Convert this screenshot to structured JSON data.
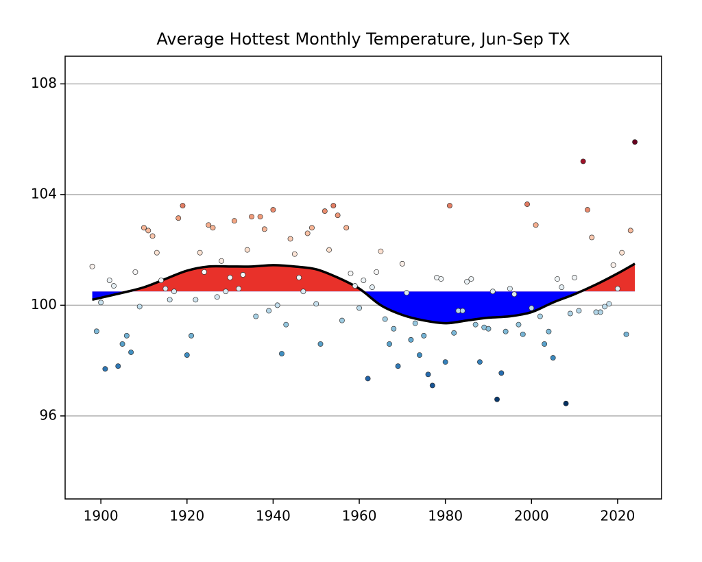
{
  "chart_data": {
    "type": "scatter",
    "title": "Average Hottest Monthly Temperature, Jun-Sep TX",
    "x": [
      1898,
      1899,
      1900,
      1901,
      1902,
      1903,
      1904,
      1905,
      1906,
      1907,
      1908,
      1909,
      1910,
      1911,
      1912,
      1913,
      1914,
      1915,
      1916,
      1917,
      1918,
      1919,
      1920,
      1921,
      1922,
      1923,
      1924,
      1925,
      1926,
      1927,
      1928,
      1929,
      1930,
      1931,
      1932,
      1933,
      1934,
      1935,
      1936,
      1937,
      1938,
      1939,
      1940,
      1941,
      1942,
      1943,
      1944,
      1945,
      1946,
      1947,
      1948,
      1949,
      1950,
      1951,
      1952,
      1953,
      1954,
      1955,
      1956,
      1957,
      1958,
      1959,
      1960,
      1961,
      1962,
      1963,
      1964,
      1965,
      1966,
      1967,
      1968,
      1969,
      1970,
      1971,
      1972,
      1973,
      1974,
      1975,
      1976,
      1977,
      1978,
      1979,
      1980,
      1981,
      1982,
      1983,
      1984,
      1985,
      1986,
      1987,
      1988,
      1989,
      1990,
      1991,
      1992,
      1993,
      1994,
      1995,
      1996,
      1997,
      1998,
      1999,
      2000,
      2001,
      2002,
      2003,
      2004,
      2005,
      2006,
      2007,
      2008,
      2009,
      2010,
      2011,
      2012,
      2013,
      2014,
      2015,
      2016,
      2017,
      2018,
      2019,
      2020,
      2021,
      2022,
      2023,
      2024
    ],
    "values": [
      101.4,
      99.06,
      100.1,
      97.7,
      100.9,
      100.7,
      97.8,
      98.6,
      98.9,
      98.3,
      101.2,
      99.95,
      102.8,
      102.7,
      102.5,
      101.9,
      100.9,
      100.6,
      100.2,
      100.5,
      103.15,
      103.6,
      98.2,
      98.9,
      100.2,
      101.9,
      101.2,
      102.9,
      102.8,
      100.3,
      101.6,
      100.5,
      101.0,
      103.05,
      100.6,
      101.1,
      102.0,
      103.2,
      99.6,
      103.2,
      102.75,
      99.8,
      103.45,
      100.0,
      98.25,
      99.3,
      102.4,
      101.85,
      101.0,
      100.5,
      102.6,
      102.8,
      100.05,
      98.6,
      103.4,
      102.0,
      103.6,
      103.25,
      99.45,
      102.8,
      101.15,
      100.7,
      99.9,
      100.9,
      97.35,
      100.65,
      101.2,
      101.95,
      99.5,
      98.6,
      99.15,
      97.8,
      101.5,
      100.45,
      98.75,
      99.35,
      98.2,
      98.9,
      97.5,
      97.1,
      101.0,
      100.95,
      97.95,
      103.6,
      99.0,
      99.8,
      99.8,
      100.85,
      100.95,
      99.3,
      97.95,
      99.2,
      99.15,
      100.5,
      96.6,
      97.55,
      99.05,
      100.6,
      100.4,
      99.3,
      98.95,
      103.65,
      99.9,
      102.9,
      99.6,
      98.6,
      99.05,
      98.1,
      100.95,
      100.65,
      96.45,
      99.7,
      101.0,
      99.8,
      105.2,
      103.45,
      102.45,
      99.75,
      99.75,
      99.95,
      100.05,
      101.45,
      100.6,
      101.9,
      98.95,
      102.7,
      105.9
    ],
    "colormap": [
      "#053061",
      "#2166ac",
      "#4393c3",
      "#92c5de",
      "#d1e5f0",
      "#f7f7f7",
      "#fddbc7",
      "#f4a582",
      "#d6604d",
      "#b2182b",
      "#67001f"
    ],
    "smooth": {
      "x": [
        1898,
        1905,
        1910,
        1915,
        1920,
        1925,
        1930,
        1935,
        1940,
        1945,
        1950,
        1955,
        1960,
        1965,
        1970,
        1975,
        1980,
        1985,
        1990,
        1995,
        2000,
        2005,
        2010,
        2015,
        2020,
        2024
      ],
      "values": [
        100.2,
        100.45,
        100.65,
        100.95,
        101.25,
        101.4,
        101.4,
        101.4,
        101.45,
        101.4,
        101.3,
        101.0,
        100.6,
        100.0,
        99.65,
        99.45,
        99.35,
        99.45,
        99.55,
        99.6,
        99.75,
        100.1,
        100.4,
        100.75,
        101.15,
        101.5
      ],
      "color": "#000000"
    },
    "baseline": 100.5,
    "fill_colors": {
      "above": "#e8312a",
      "below": "#0000ff"
    },
    "xlim": [
      1891.7,
      2030.2
    ],
    "ylim": [
      93,
      109
    ],
    "xticks": [
      1900,
      1920,
      1940,
      1960,
      1980,
      2000,
      2020
    ],
    "yticks": [
      96,
      100,
      104,
      108
    ],
    "grid": "y"
  }
}
